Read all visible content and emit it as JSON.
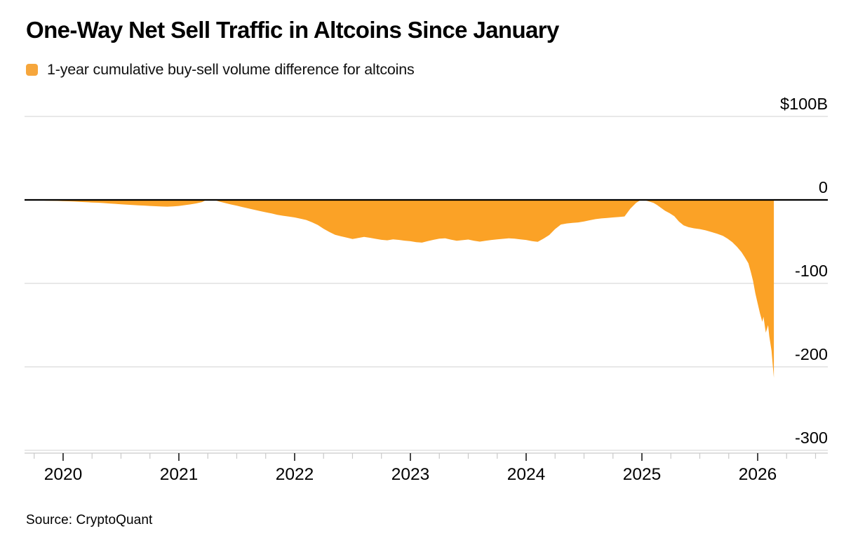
{
  "header": {
    "title": "One-Way Net Sell Traffic in Altcoins Since January"
  },
  "legend": {
    "swatch_color": "#F6A63C",
    "label": "1-year cumulative buy-sell volume difference for altcoins"
  },
  "footer": {
    "source": "Source: CryptoQuant"
  },
  "chart_data": {
    "type": "area",
    "title": "One-Way Net Sell Traffic in Altcoins Since January",
    "series_name": "1-year cumulative buy-sell volume difference for altcoins",
    "unit": "$B",
    "legend_position": "top-left",
    "grid_on": true,
    "fill_color": "#FBA226",
    "grid_color": "#d9d9d9",
    "zero_line_color": "#000000",
    "axis_line_color": "#c9c9c9",
    "major_tick_color": "#1a1a1a",
    "label_color": "#000000",
    "xlim": [
      2019.667,
      2026.606
    ],
    "ylim": [
      -300,
      100
    ],
    "x_tick_values": [
      2020,
      2021,
      2022,
      2023,
      2024,
      2025,
      2026
    ],
    "x_tick_labels": [
      "2020",
      "2021",
      "2022",
      "2023",
      "2024",
      "2025",
      "2026"
    ],
    "minor_tick_step_years": 0.25,
    "y_ticks": [
      {
        "label": "$100B",
        "value": 100
      },
      {
        "label": "0",
        "value": 0
      },
      {
        "label": "-100",
        "value": -100
      },
      {
        "label": "-200",
        "value": -200
      },
      {
        "label": "-300",
        "value": -300
      }
    ],
    "x": [
      2019.7,
      2019.75,
      2019.8,
      2019.85,
      2019.9,
      2019.95,
      2020.0,
      2020.05,
      2020.1,
      2020.15,
      2020.2,
      2020.25,
      2020.3,
      2020.35,
      2020.4,
      2020.45,
      2020.5,
      2020.55,
      2020.6,
      2020.65,
      2020.7,
      2020.75,
      2020.8,
      2020.85,
      2020.9,
      2020.95,
      2021.0,
      2021.05,
      2021.1,
      2021.15,
      2021.2,
      2021.25,
      2021.3,
      2021.35,
      2021.4,
      2021.45,
      2021.5,
      2021.55,
      2021.6,
      2021.65,
      2021.7,
      2021.75,
      2021.8,
      2021.85,
      2021.9,
      2021.95,
      2022.0,
      2022.05,
      2022.1,
      2022.15,
      2022.2,
      2022.25,
      2022.3,
      2022.35,
      2022.4,
      2022.45,
      2022.5,
      2022.55,
      2022.6,
      2022.65,
      2022.7,
      2022.75,
      2022.8,
      2022.85,
      2022.9,
      2022.95,
      2023.0,
      2023.05,
      2023.1,
      2023.15,
      2023.2,
      2023.25,
      2023.3,
      2023.35,
      2023.4,
      2023.45,
      2023.5,
      2023.55,
      2023.6,
      2023.65,
      2023.7,
      2023.75,
      2023.8,
      2023.85,
      2023.9,
      2023.95,
      2024.0,
      2024.05,
      2024.1,
      2024.15,
      2024.2,
      2024.25,
      2024.3,
      2024.35,
      2024.4,
      2024.45,
      2024.5,
      2024.55,
      2024.6,
      2024.65,
      2024.7,
      2024.75,
      2024.8,
      2024.85,
      2024.9,
      2024.95,
      2025.0,
      2025.03,
      2025.06,
      2025.1,
      2025.13,
      2025.16,
      2025.2,
      2025.24,
      2025.28,
      2025.32,
      2025.36,
      2025.4,
      2025.45,
      2025.5,
      2025.55,
      2025.6,
      2025.65,
      2025.7,
      2025.74,
      2025.78,
      2025.82,
      2025.86,
      2025.89,
      2025.92,
      2025.94,
      2025.96,
      2025.98,
      2026.0,
      2026.02,
      2026.04,
      2026.05,
      2026.07,
      2026.09,
      2026.1,
      2026.12,
      2026.13,
      2026.14
    ],
    "values": [
      -0.3,
      -0.5,
      -0.7,
      -0.9,
      -1.0,
      -1.2,
      -1.4,
      -1.7,
      -2.0,
      -2.4,
      -2.8,
      -3.1,
      -3.4,
      -3.8,
      -4.3,
      -4.7,
      -5.2,
      -5.7,
      -6.1,
      -6.5,
      -6.8,
      -7.2,
      -7.6,
      -7.9,
      -8.1,
      -7.8,
      -7.2,
      -6.3,
      -5.4,
      -4.2,
      -2.6,
      0.8,
      0.2,
      -2.0,
      -3.8,
      -5.5,
      -7.0,
      -8.6,
      -10.2,
      -11.8,
      -13.4,
      -14.8,
      -16.2,
      -17.8,
      -19.0,
      -20.0,
      -21.0,
      -22.4,
      -24.0,
      -26.8,
      -30.0,
      -34.5,
      -38.5,
      -41.8,
      -43.6,
      -45.2,
      -46.8,
      -45.6,
      -44.3,
      -45.4,
      -46.6,
      -47.8,
      -48.4,
      -47.2,
      -47.9,
      -48.8,
      -49.5,
      -50.6,
      -51.2,
      -49.4,
      -47.8,
      -46.5,
      -46.0,
      -47.6,
      -49.0,
      -48.2,
      -47.5,
      -48.9,
      -50.0,
      -49.0,
      -48.0,
      -47.2,
      -46.6,
      -46.0,
      -46.4,
      -47.2,
      -48.0,
      -49.4,
      -50.2,
      -46.5,
      -42.0,
      -35.0,
      -29.5,
      -28.2,
      -27.6,
      -27.0,
      -25.8,
      -24.4,
      -23.0,
      -22.2,
      -21.6,
      -21.0,
      -20.5,
      -19.8,
      -10.5,
      -3.5,
      0.8,
      -0.5,
      -1.8,
      -3.5,
      -6.0,
      -9.0,
      -13.0,
      -16.0,
      -19.5,
      -26.0,
      -30.5,
      -32.5,
      -34.0,
      -35.0,
      -36.5,
      -38.5,
      -40.5,
      -43.0,
      -46.5,
      -50.5,
      -56.0,
      -62.5,
      -69.0,
      -76.0,
      -86.0,
      -97.0,
      -112.0,
      -124.0,
      -136.0,
      -146.0,
      -140.0,
      -159.0,
      -150.0,
      -163.0,
      -181.0,
      -198.0,
      -213.0
    ]
  }
}
